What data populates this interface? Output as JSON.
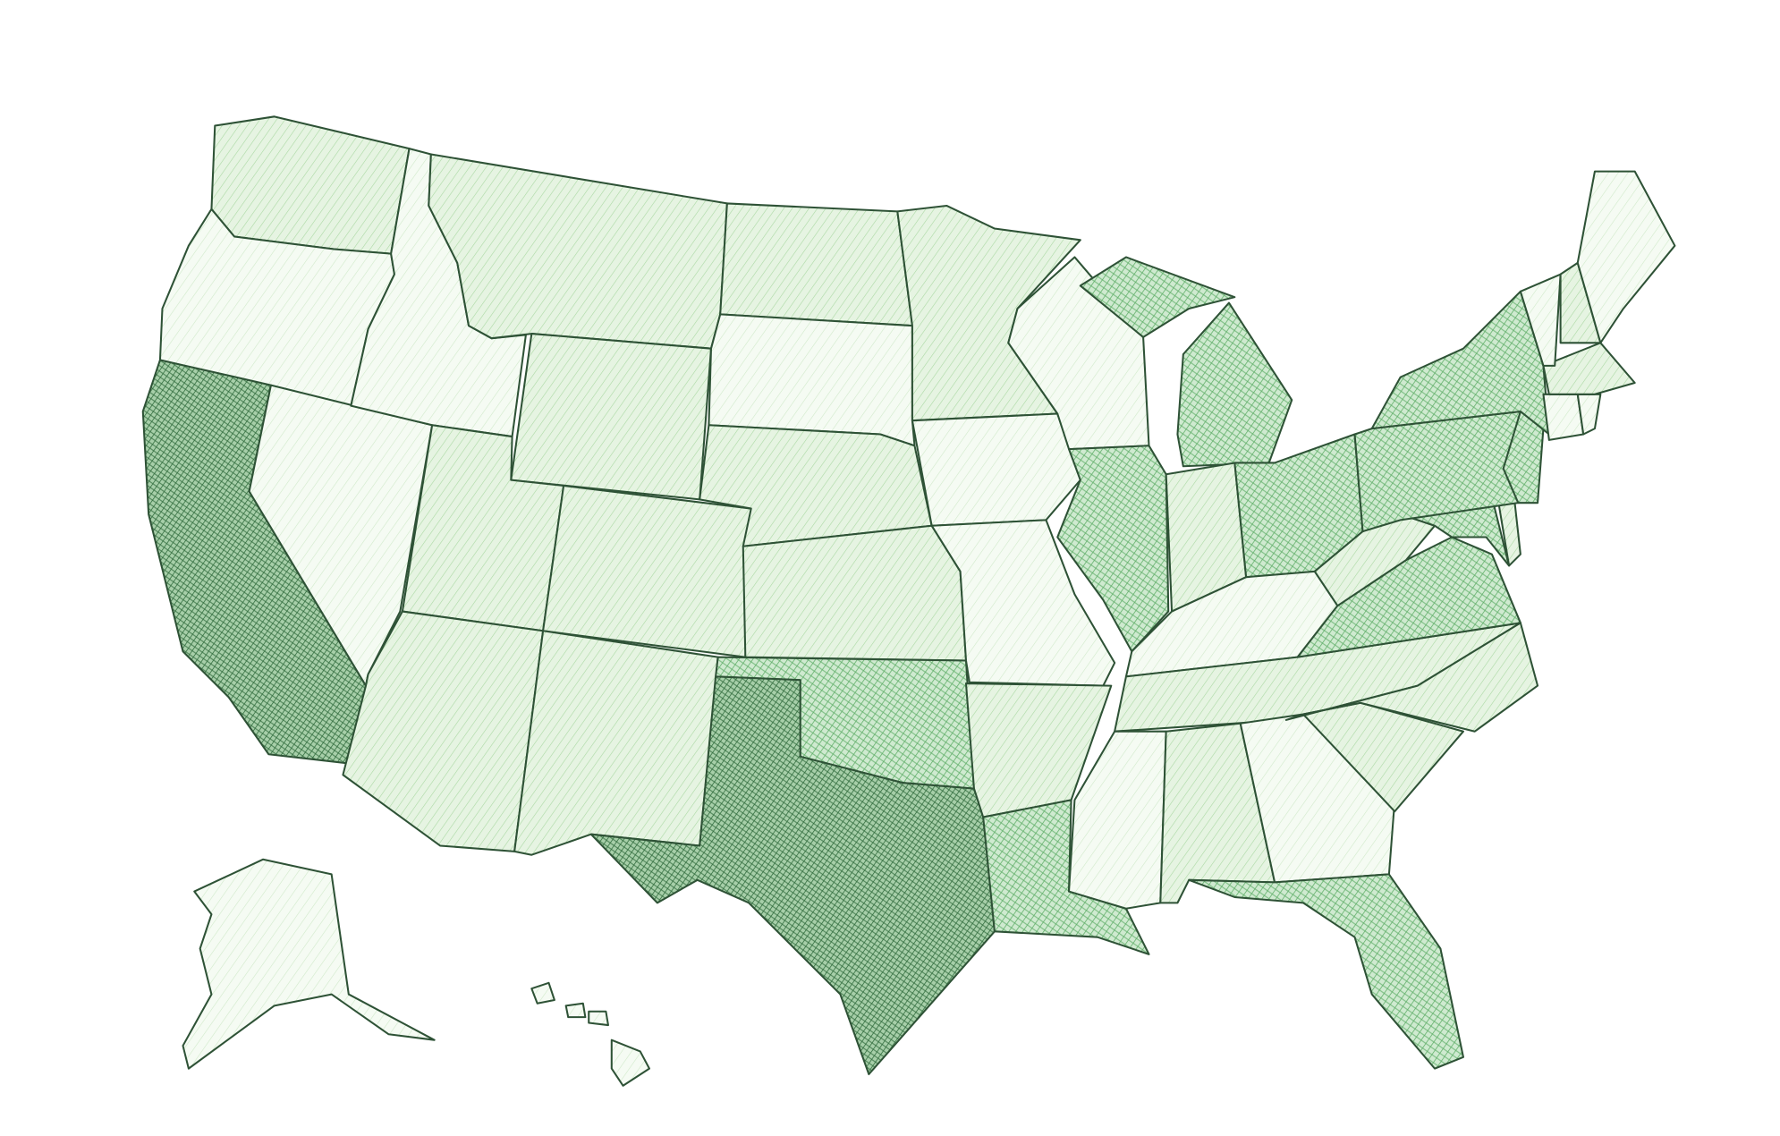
{
  "map": {
    "type": "choropleth",
    "style": "hand-drawn hatched",
    "legend": "none",
    "stroke_color": "#2e5236",
    "level_colors": {
      "1": {
        "base": "#f5fbf3",
        "hatch": "#cfe9c9"
      },
      "2": {
        "base": "#e6f4e2",
        "hatch": "#a9d8a1"
      },
      "3": {
        "base": "#cfead0",
        "hatch": "#5fae68"
      },
      "4": {
        "base": "#a7cfa9",
        "hatch": "#2f6b3c"
      }
    },
    "states": [
      {
        "id": "WA",
        "level": 2
      },
      {
        "id": "OR",
        "level": 1
      },
      {
        "id": "CA",
        "level": 4
      },
      {
        "id": "NV",
        "level": 1
      },
      {
        "id": "ID",
        "level": 1
      },
      {
        "id": "MT",
        "level": 2
      },
      {
        "id": "WY",
        "level": 2
      },
      {
        "id": "UT",
        "level": 2
      },
      {
        "id": "CO",
        "level": 2
      },
      {
        "id": "AZ",
        "level": 2
      },
      {
        "id": "NM",
        "level": 2
      },
      {
        "id": "ND",
        "level": 2
      },
      {
        "id": "SD",
        "level": 1
      },
      {
        "id": "NE",
        "level": 2
      },
      {
        "id": "KS",
        "level": 2
      },
      {
        "id": "OK",
        "level": 3
      },
      {
        "id": "TX",
        "level": 4
      },
      {
        "id": "MN",
        "level": 2
      },
      {
        "id": "IA",
        "level": 1
      },
      {
        "id": "MO",
        "level": 1
      },
      {
        "id": "AR",
        "level": 2
      },
      {
        "id": "LA",
        "level": 3
      },
      {
        "id": "WI",
        "level": 1
      },
      {
        "id": "IL",
        "level": 3
      },
      {
        "id": "MI",
        "level": 3
      },
      {
        "id": "IN",
        "level": 2
      },
      {
        "id": "OH",
        "level": 3
      },
      {
        "id": "KY",
        "level": 1
      },
      {
        "id": "TN",
        "level": 2
      },
      {
        "id": "MS",
        "level": 1
      },
      {
        "id": "AL",
        "level": 2
      },
      {
        "id": "GA",
        "level": 1
      },
      {
        "id": "FL",
        "level": 3
      },
      {
        "id": "SC",
        "level": 2
      },
      {
        "id": "NC",
        "level": 2
      },
      {
        "id": "VA",
        "level": 3
      },
      {
        "id": "WV",
        "level": 2
      },
      {
        "id": "MD",
        "level": 3
      },
      {
        "id": "DE",
        "level": 2
      },
      {
        "id": "PA",
        "level": 3
      },
      {
        "id": "NJ",
        "level": 3
      },
      {
        "id": "NY",
        "level": 3
      },
      {
        "id": "CT",
        "level": 1
      },
      {
        "id": "RI",
        "level": 1
      },
      {
        "id": "MA",
        "level": 2
      },
      {
        "id": "VT",
        "level": 1
      },
      {
        "id": "NH",
        "level": 2
      },
      {
        "id": "ME",
        "level": 1
      },
      {
        "id": "AK",
        "level": 1
      },
      {
        "id": "HI",
        "level": 1
      }
    ]
  }
}
